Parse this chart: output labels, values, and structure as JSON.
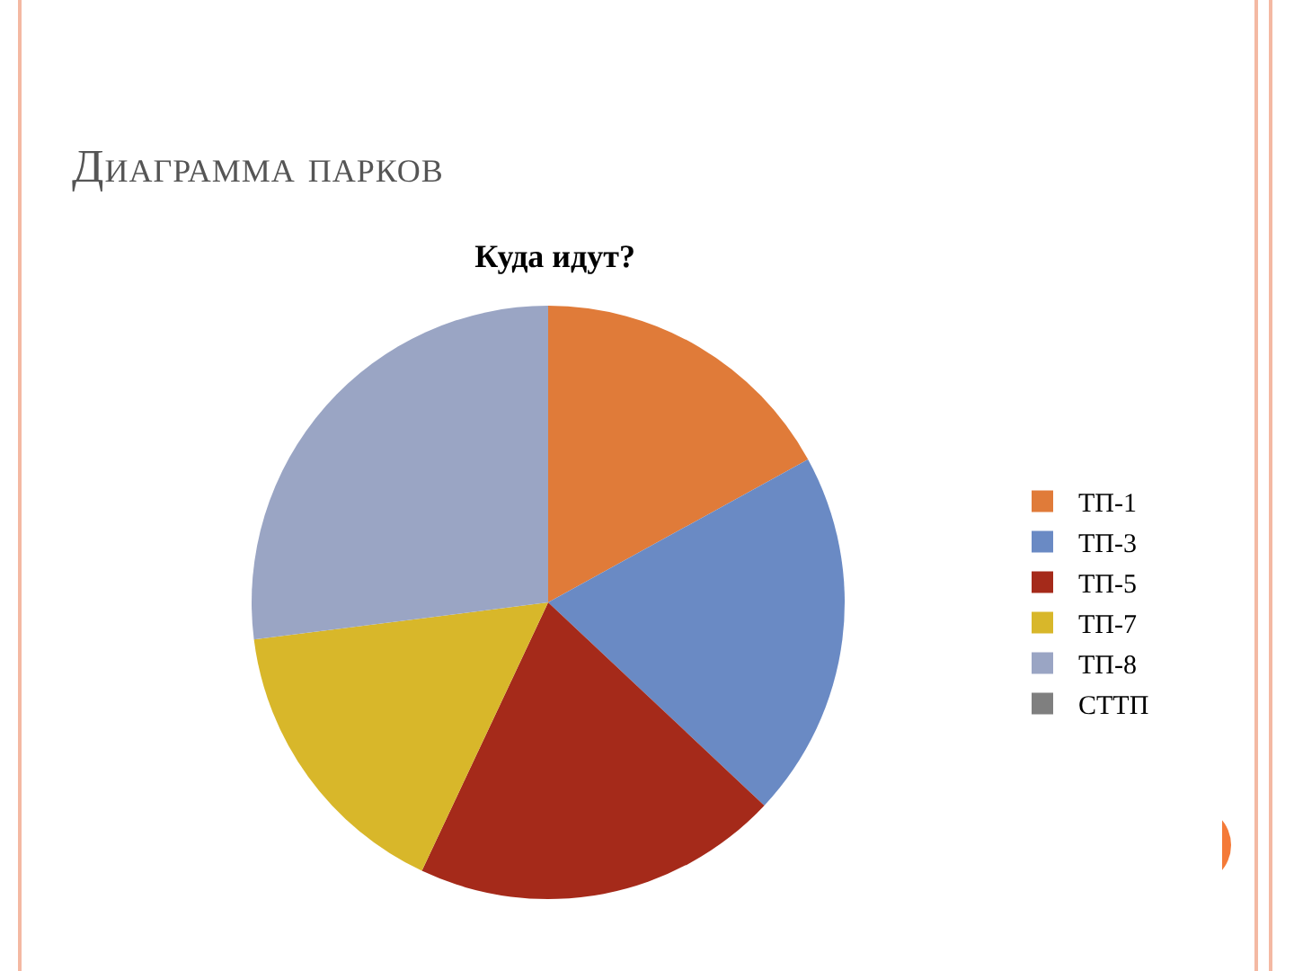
{
  "chart_data": {
    "type": "pie",
    "title": "Куда идут?",
    "annotations": [
      "Диаграмма парков"
    ],
    "categories": [
      "ТП-1",
      "ТП-3",
      "ТП-5",
      "ТП-7",
      "ТП-8",
      "СТТП"
    ],
    "values": [
      17,
      20,
      20,
      16,
      27,
      0
    ],
    "colors": [
      "#e07b39",
      "#6a8ac4",
      "#a52a1a",
      "#d8b72a",
      "#9aa5c4",
      "#7f7f7f"
    ],
    "legend": "right"
  }
}
